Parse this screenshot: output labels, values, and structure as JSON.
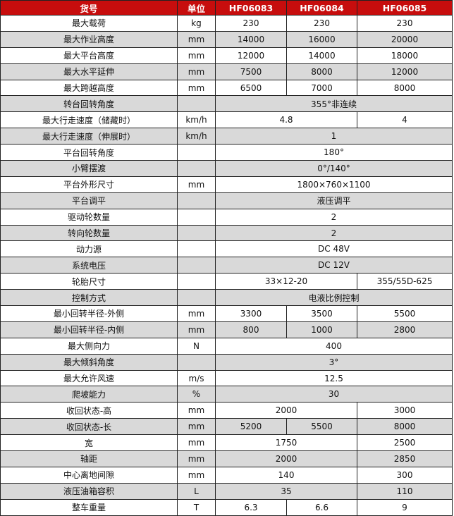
{
  "header_color": "#c70d0d",
  "header": [
    "货号",
    "单位",
    "HF06083",
    "HF06084",
    "HF06085"
  ],
  "rows": [
    {
      "label": "最大载荷",
      "unit": "kg",
      "values": [
        "230",
        "230",
        "230"
      ]
    },
    {
      "label": "最大作业高度",
      "unit": "mm",
      "values": [
        "14000",
        "16000",
        "20000"
      ]
    },
    {
      "label": "最大平台高度",
      "unit": "mm",
      "values": [
        "12000",
        "14000",
        "18000"
      ]
    },
    {
      "label": "最大水平延伸",
      "unit": "mm",
      "values": [
        "7500",
        "8000",
        "12000"
      ]
    },
    {
      "label": "最大跨越高度",
      "unit": "mm",
      "values": [
        "6500",
        "7000",
        "8000"
      ]
    },
    {
      "label": "转台回转角度",
      "unit": "",
      "values": [
        "355°非连续"
      ]
    },
    {
      "label": "最大行走速度（储藏时）",
      "unit": "km/h",
      "values": [
        "4.8",
        "4"
      ]
    },
    {
      "label": "最大行走速度（伸展时）",
      "unit": "km/h",
      "values": [
        "1"
      ]
    },
    {
      "label": "平台回转角度",
      "unit": "",
      "values": [
        "180°"
      ]
    },
    {
      "label": "小臂摆渡",
      "unit": "",
      "values": [
        "0°/140°"
      ]
    },
    {
      "label": "平台外形尺寸",
      "unit": "mm",
      "values": [
        "1800×760×1100"
      ]
    },
    {
      "label": "平台调平",
      "unit": "",
      "values": [
        "液压调平"
      ]
    },
    {
      "label": "驱动轮数量",
      "unit": "",
      "values": [
        "2"
      ]
    },
    {
      "label": "转向轮数量",
      "unit": "",
      "values": [
        "2"
      ]
    },
    {
      "label": "动力源",
      "unit": "",
      "values": [
        "DC 48V"
      ]
    },
    {
      "label": "系统电压",
      "unit": "",
      "values": [
        "DC 12V"
      ]
    },
    {
      "label": "轮胎尺寸",
      "unit": "",
      "values": [
        "33×12-20",
        "355/55D-625"
      ]
    },
    {
      "label": "控制方式",
      "unit": "",
      "values": [
        "电液比例控制"
      ]
    },
    {
      "label": "最小回转半径-外侧",
      "unit": "mm",
      "values": [
        "3300",
        "3500",
        "5500"
      ]
    },
    {
      "label": "最小回转半径-内侧",
      "unit": "mm",
      "values": [
        "800",
        "1000",
        "2800"
      ]
    },
    {
      "label": "最大侧向力",
      "unit": "N",
      "values": [
        "400"
      ]
    },
    {
      "label": "最大倾斜角度",
      "unit": "",
      "values": [
        "3°"
      ]
    },
    {
      "label": "最大允许风速",
      "unit": "m/s",
      "values": [
        "12.5"
      ]
    },
    {
      "label": "爬坡能力",
      "unit": "%",
      "values": [
        "30"
      ]
    },
    {
      "label": "收回状态-高",
      "unit": "mm",
      "values": [
        "2000",
        "3000"
      ]
    },
    {
      "label": "收回状态-长",
      "unit": "mm",
      "values": [
        "5200",
        "5500",
        "8000"
      ]
    },
    {
      "label": "宽",
      "unit": "mm",
      "values": [
        "1750",
        "2500"
      ]
    },
    {
      "label": "轴距",
      "unit": "mm",
      "values": [
        "2000",
        "2850"
      ]
    },
    {
      "label": "中心离地间隙",
      "unit": "mm",
      "values": [
        "140",
        "300"
      ]
    },
    {
      "label": "液压油箱容积",
      "unit": "L",
      "values": [
        "35",
        "110"
      ]
    },
    {
      "label": "整车重量",
      "unit": "T",
      "values": [
        "6.3",
        "6.6",
        "9"
      ]
    }
  ]
}
